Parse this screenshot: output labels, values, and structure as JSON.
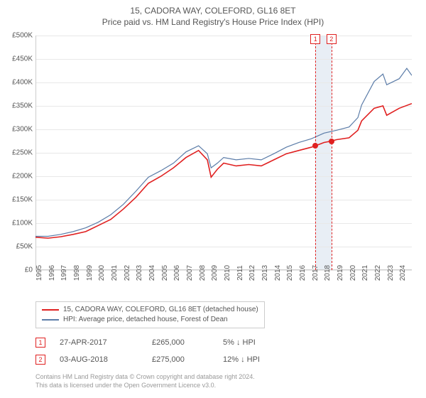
{
  "title": "15, CADORA WAY, COLEFORD, GL16 8ET",
  "subtitle": "Price paid vs. HM Land Registry's House Price Index (HPI)",
  "chart": {
    "type": "line",
    "background_color": "#ffffff",
    "grid_color": "#e8e8e8",
    "axis_color": "#cccccc",
    "text_color": "#555555",
    "title_fontsize": 12,
    "label_fontsize": 10,
    "x": {
      "min": 1995,
      "max": 2025,
      "ticks": [
        1995,
        1996,
        1997,
        1998,
        1999,
        2000,
        2001,
        2002,
        2003,
        2004,
        2005,
        2006,
        2007,
        2008,
        2009,
        2010,
        2011,
        2012,
        2013,
        2014,
        2015,
        2016,
        2017,
        2018,
        2019,
        2020,
        2021,
        2022,
        2023,
        2024
      ]
    },
    "y": {
      "min": 0,
      "max": 500000,
      "ticks": [
        0,
        50000,
        100000,
        150000,
        200000,
        250000,
        300000,
        350000,
        400000,
        450000,
        500000
      ],
      "prefix": "£",
      "suffix": "K",
      "divisor": 1000
    },
    "highlight_band": {
      "from": 2017.32,
      "to": 2018.59,
      "color": "#e8eef5"
    },
    "markers": [
      {
        "n": "1",
        "year": 2017.32,
        "value": 265000
      },
      {
        "n": "2",
        "year": 2018.59,
        "value": 275000
      }
    ],
    "marker_line_color": "#e02020",
    "marker_box_border": "#e02020",
    "marker_box_text": "#e02020",
    "series": [
      {
        "name": "property",
        "label": "15, CADORA WAY, COLEFORD, GL16 8ET (detached house)",
        "color": "#e02020",
        "width": 1.6,
        "data": [
          [
            1995,
            70000
          ],
          [
            1996,
            68000
          ],
          [
            1997,
            71000
          ],
          [
            1998,
            76000
          ],
          [
            1999,
            82000
          ],
          [
            2000,
            95000
          ],
          [
            2001,
            108000
          ],
          [
            2002,
            130000
          ],
          [
            2003,
            155000
          ],
          [
            2004,
            185000
          ],
          [
            2005,
            200000
          ],
          [
            2006,
            218000
          ],
          [
            2007,
            240000
          ],
          [
            2008,
            255000
          ],
          [
            2008.7,
            235000
          ],
          [
            2009,
            198000
          ],
          [
            2009.5,
            215000
          ],
          [
            2010,
            228000
          ],
          [
            2011,
            222000
          ],
          [
            2012,
            225000
          ],
          [
            2013,
            222000
          ],
          [
            2014,
            235000
          ],
          [
            2015,
            248000
          ],
          [
            2016,
            255000
          ],
          [
            2017,
            262000
          ],
          [
            2017.32,
            265000
          ],
          [
            2018,
            272000
          ],
          [
            2018.59,
            275000
          ],
          [
            2019,
            278000
          ],
          [
            2020,
            282000
          ],
          [
            2020.7,
            298000
          ],
          [
            2021,
            318000
          ],
          [
            2022,
            345000
          ],
          [
            2022.7,
            350000
          ],
          [
            2023,
            330000
          ],
          [
            2024,
            345000
          ],
          [
            2025,
            355000
          ]
        ]
      },
      {
        "name": "hpi",
        "label": "HPI: Average price, detached house, Forest of Dean",
        "color": "#5b7ca8",
        "width": 1.2,
        "data": [
          [
            1995,
            72000
          ],
          [
            1996,
            72000
          ],
          [
            1997,
            76000
          ],
          [
            1998,
            82000
          ],
          [
            1999,
            90000
          ],
          [
            2000,
            102000
          ],
          [
            2001,
            118000
          ],
          [
            2002,
            140000
          ],
          [
            2003,
            168000
          ],
          [
            2004,
            198000
          ],
          [
            2005,
            212000
          ],
          [
            2006,
            228000
          ],
          [
            2007,
            252000
          ],
          [
            2008,
            265000
          ],
          [
            2008.7,
            248000
          ],
          [
            2009,
            218000
          ],
          [
            2009.5,
            228000
          ],
          [
            2010,
            240000
          ],
          [
            2011,
            235000
          ],
          [
            2012,
            238000
          ],
          [
            2013,
            235000
          ],
          [
            2014,
            248000
          ],
          [
            2015,
            262000
          ],
          [
            2016,
            272000
          ],
          [
            2017,
            280000
          ],
          [
            2018,
            292000
          ],
          [
            2019,
            298000
          ],
          [
            2020,
            305000
          ],
          [
            2020.7,
            325000
          ],
          [
            2021,
            352000
          ],
          [
            2022,
            402000
          ],
          [
            2022.7,
            418000
          ],
          [
            2023,
            395000
          ],
          [
            2024,
            408000
          ],
          [
            2024.6,
            430000
          ],
          [
            2025,
            415000
          ]
        ]
      }
    ]
  },
  "legend": [
    {
      "color": "#e02020",
      "label": "15, CADORA WAY, COLEFORD, GL16 8ET (detached house)"
    },
    {
      "color": "#5b7ca8",
      "label": "HPI: Average price, detached house, Forest of Dean"
    }
  ],
  "transactions": [
    {
      "n": "1",
      "date": "27-APR-2017",
      "price": "£265,000",
      "diff": "5% ↓ HPI"
    },
    {
      "n": "2",
      "date": "03-AUG-2018",
      "price": "£275,000",
      "diff": "12% ↓ HPI"
    }
  ],
  "footer": {
    "line1": "Contains HM Land Registry data © Crown copyright and database right 2024.",
    "line2": "This data is licensed under the Open Government Licence v3.0."
  }
}
